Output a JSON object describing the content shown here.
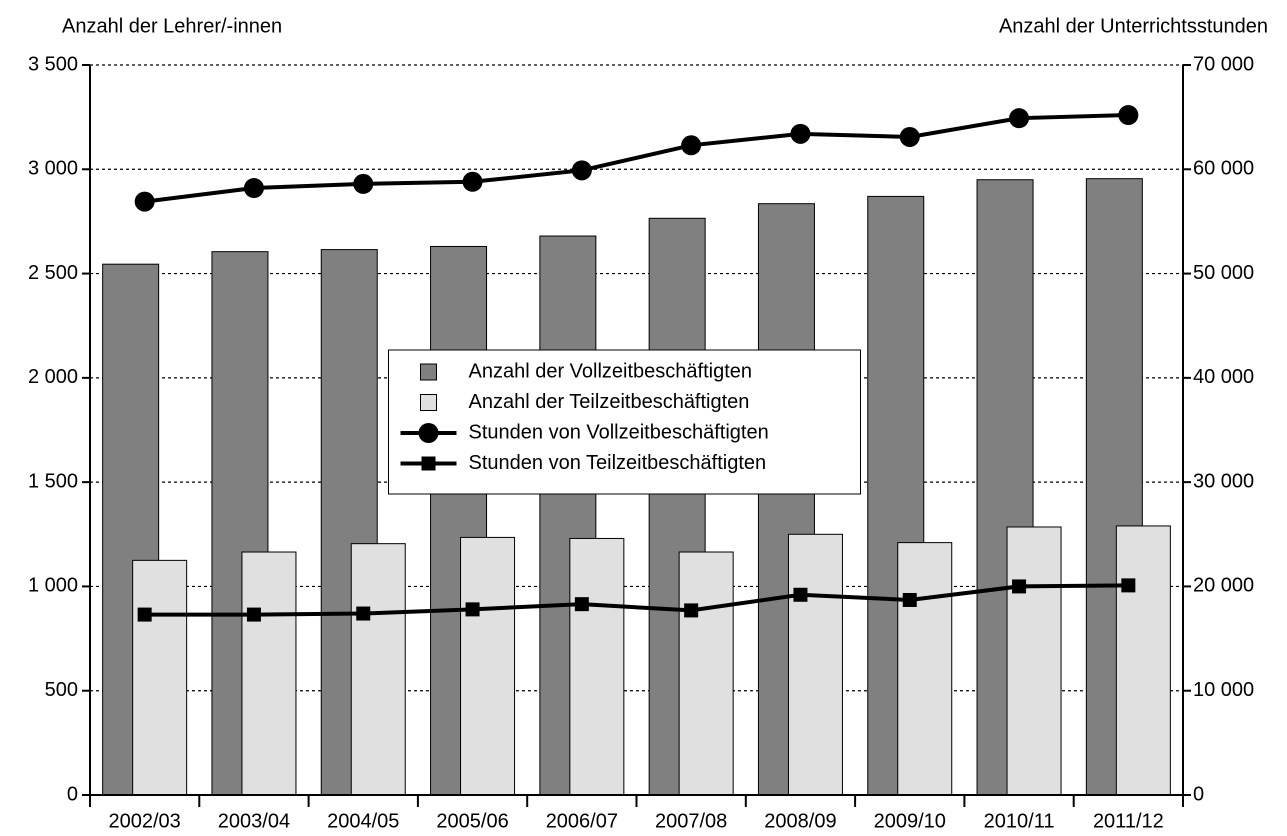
{
  "chart_data": {
    "type": "bar-line",
    "y_label": "Anzahl der Lehrer/-innen",
    "y2_label": "Anzahl der Unterrichtsstunden",
    "categories": [
      "2002/03",
      "2003/04",
      "2004/05",
      "2005/06",
      "2006/07",
      "2007/08",
      "2008/09",
      "2009/10",
      "2010/11",
      "2011/12"
    ],
    "series": [
      {
        "name": "Anzahl der Vollzeitbeschäftigten",
        "type": "bar",
        "color": "#808080",
        "values": [
          2545,
          2605,
          2615,
          2630,
          2680,
          2765,
          2835,
          2870,
          2950,
          2955
        ]
      },
      {
        "name": "Anzahl der Teilzeitbeschäftigten",
        "type": "bar",
        "color": "#e0e0e0",
        "values": [
          1125,
          1165,
          1205,
          1235,
          1230,
          1165,
          1250,
          1210,
          1285,
          1290
        ]
      },
      {
        "name": "Stunden von Vollzeitbeschäftigten",
        "type": "line",
        "axis": "y2",
        "marker": "circle",
        "color": "#000000",
        "values": [
          56900,
          58200,
          58600,
          58800,
          59900,
          62300,
          63400,
          63100,
          64900,
          65200
        ]
      },
      {
        "name": "Stunden von Teilzeitbeschäftigten",
        "type": "line",
        "axis": "y2",
        "marker": "square",
        "color": "#000000",
        "values": [
          17300,
          17300,
          17400,
          17800,
          18300,
          17700,
          19200,
          18700,
          20000,
          20100
        ]
      }
    ],
    "ylim": [
      0,
      3500
    ],
    "yticks": [
      0,
      500,
      {
        "value": 1000,
        "label": "1 000"
      },
      {
        "value": 1500,
        "label": "1 500"
      },
      {
        "value": 2000,
        "label": "2 000"
      },
      {
        "value": 2500,
        "label": "2 500"
      },
      {
        "value": 3000,
        "label": "3 000"
      },
      {
        "value": 3500,
        "label": "3 500"
      }
    ],
    "y2lim": [
      0,
      70000
    ],
    "y2ticks": [
      0,
      {
        "value": 10000,
        "label": "10 000"
      },
      {
        "value": 20000,
        "label": "20 000"
      },
      {
        "value": 30000,
        "label": "30 000"
      },
      {
        "value": 40000,
        "label": "40 000"
      },
      {
        "value": 50000,
        "label": "50 000"
      },
      {
        "value": 60000,
        "label": "60 000"
      },
      {
        "value": 70000,
        "label": "70 000"
      }
    ],
    "grid": true,
    "legend": "center"
  }
}
